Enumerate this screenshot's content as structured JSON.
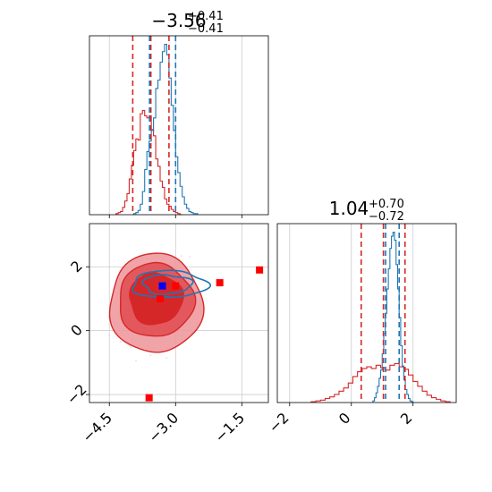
{
  "chart_data": [
    {
      "type": "histogram",
      "panel": "top-left",
      "title_main": "−3.56",
      "title_sup": "+0.41",
      "title_sub": "−0.41",
      "x_range": [
        -4.95,
        -0.9
      ],
      "x_ticks": [
        -4.5,
        -3.0,
        -1.5
      ],
      "grid": true,
      "series": [
        {
          "color": "#d62728",
          "bin_edges": [
            -4.35,
            -4.3,
            -4.25,
            -4.2,
            -4.15,
            -4.1,
            -4.05,
            -4.0,
            -3.95,
            -3.9,
            -3.85,
            -3.8,
            -3.75,
            -3.7,
            -3.65,
            -3.6,
            -3.55,
            -3.5,
            -3.45,
            -3.4,
            -3.35,
            -3.3,
            -3.25,
            -3.2,
            -3.15,
            -3.1,
            -3.05,
            -3.0,
            -2.95,
            -2.9,
            -2.85
          ],
          "counts": [
            1,
            2,
            3,
            7,
            13,
            20,
            34,
            47,
            61,
            72,
            71,
            96,
            99,
            94,
            92,
            94,
            81,
            75,
            53,
            46,
            32,
            26,
            15,
            10,
            8,
            5,
            3,
            2,
            1,
            0
          ],
          "quantile_lines": [
            -3.97,
            -3.56,
            -3.15
          ]
        },
        {
          "color": "#1f77b4",
          "bin_edges": [
            -3.95,
            -3.9,
            -3.85,
            -3.8,
            -3.75,
            -3.7,
            -3.65,
            -3.6,
            -3.55,
            -3.5,
            -3.45,
            -3.4,
            -3.35,
            -3.3,
            -3.25,
            -3.2,
            -3.15,
            -3.1,
            -3.05,
            -3.0,
            -2.95,
            -2.9,
            -2.85,
            -2.8,
            -2.75,
            -2.7,
            -2.65,
            -2.6,
            -2.55,
            -2.5
          ],
          "counts": [
            1,
            2,
            4,
            10,
            22,
            43,
            60,
            70,
            80,
            92,
            120,
            128,
            145,
            155,
            162,
            152,
            130,
            104,
            80,
            55,
            40,
            27,
            17,
            10,
            6,
            3,
            2,
            1,
            1
          ],
          "quantile_lines": [
            -3.59,
            -3.0
          ]
        }
      ]
    },
    {
      "type": "histogram",
      "panel": "bottom-right",
      "title_main": "1.04",
      "title_sup": "+0.70",
      "title_sub": "−0.72",
      "x_range": [
        -2.4,
        3.4
      ],
      "x_ticks": [
        -2,
        0,
        2
      ],
      "grid": true,
      "series": [
        {
          "color": "#d62728",
          "bin_edges": [
            -1.3,
            -1.15,
            -1.0,
            -0.85,
            -0.7,
            -0.55,
            -0.4,
            -0.25,
            -0.1,
            0.05,
            0.2,
            0.35,
            0.5,
            0.65,
            0.8,
            0.95,
            1.1,
            1.25,
            1.4,
            1.55,
            1.7,
            1.85,
            2.0,
            2.15,
            2.3,
            2.45,
            2.6,
            2.75,
            2.9,
            3.05,
            3.2
          ],
          "counts": [
            1,
            2,
            3,
            5,
            7,
            10,
            14,
            18,
            24,
            32,
            38,
            42,
            44,
            42,
            46,
            43,
            40,
            46,
            48,
            44,
            41,
            34,
            26,
            20,
            14,
            9,
            6,
            4,
            2,
            1
          ],
          "quantile_lines": [
            0.32,
            1.04,
            1.74
          ]
        },
        {
          "color": "#1f77b4",
          "bin_edges": [
            0.7,
            0.75,
            0.8,
            0.85,
            0.9,
            0.95,
            1.0,
            1.05,
            1.1,
            1.15,
            1.2,
            1.25,
            1.3,
            1.35,
            1.4,
            1.45,
            1.5,
            1.55,
            1.6,
            1.65,
            1.7,
            1.75,
            1.8,
            1.85,
            1.9,
            1.95,
            2.0
          ],
          "counts": [
            2,
            6,
            12,
            20,
            30,
            40,
            60,
            85,
            110,
            140,
            165,
            190,
            205,
            210,
            200,
            170,
            140,
            105,
            70,
            45,
            28,
            16,
            10,
            5,
            2,
            1
          ],
          "quantile_lines": [
            1.11,
            1.55
          ]
        }
      ]
    },
    {
      "type": "scatter",
      "panel": "bottom-left",
      "x_range": [
        -4.95,
        -0.9
      ],
      "y_range": [
        -2.25,
        3.35
      ],
      "x_ticks": [
        -4.5,
        -3.0,
        -1.5
      ],
      "y_ticks": [
        -2,
        0,
        2
      ],
      "grid": true,
      "red_points": [
        [
          -3.35,
          1.0
        ],
        [
          -2.0,
          1.5
        ],
        [
          -1.1,
          1.9
        ],
        [
          -3.0,
          1.4
        ],
        [
          -3.6,
          -2.1
        ]
      ],
      "blue_point": [
        -3.3,
        1.4
      ],
      "red_contours": {
        "outer": {
          "cx": -3.45,
          "cy": 0.85,
          "rx": 1.05,
          "ry": 1.55
        },
        "middle": {
          "cx": -3.45,
          "cy": 0.95,
          "rx": 0.85,
          "ry": 1.15
        },
        "inner": {
          "cx": -3.45,
          "cy": 1.0,
          "rx": 0.6,
          "ry": 0.8
        }
      },
      "blue_contours": {
        "outer": {
          "cx": -3.15,
          "cy": 1.45,
          "rx": 0.85,
          "ry": 0.42
        },
        "inner": {
          "cx": -3.2,
          "cy": 1.45,
          "rx": 0.55,
          "ry": 0.3
        }
      },
      "background_point_count": 220
    }
  ]
}
